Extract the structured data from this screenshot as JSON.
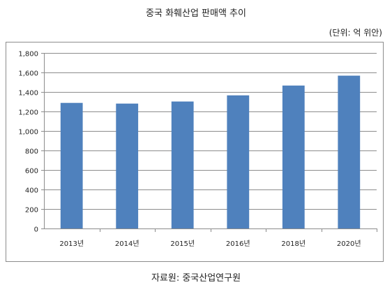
{
  "chart_data": {
    "type": "bar",
    "title": "중국 화훼산업 판매액 추이",
    "unit_label": "(단위: 억 위안)",
    "source": "자료원: 중국산업연구원",
    "categories": [
      "2013년",
      "2014년",
      "2015년",
      "2016년",
      "2018년",
      "2020년"
    ],
    "values": [
      1288,
      1281,
      1302,
      1365,
      1466,
      1567
    ],
    "ylim": [
      0,
      1800
    ],
    "yticks": [
      0,
      200,
      400,
      600,
      800,
      1000,
      1200,
      1400,
      1600,
      1800
    ],
    "ytick_labels": [
      "0",
      "200",
      "400",
      "600",
      "800",
      "1,000",
      "1,200",
      "1,400",
      "1,600",
      "1,800"
    ],
    "grid": true,
    "bar_color": "#4f81bd",
    "grid_color": "#8c8c8c"
  }
}
